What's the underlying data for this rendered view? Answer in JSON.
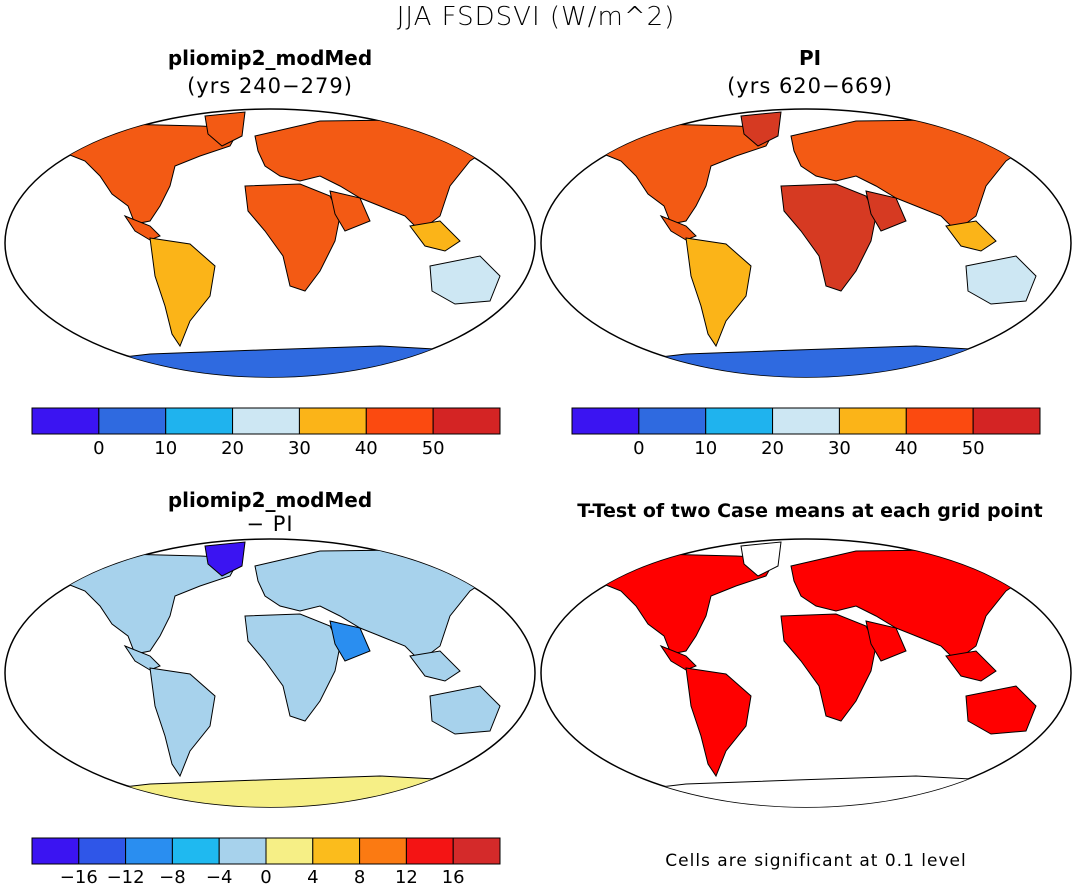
{
  "main_title": "JJA FSDSVI (W/m^2)",
  "panels": [
    {
      "title": "pliomip2_modMed",
      "subtitle": "(yrs 240−279)"
    },
    {
      "title": "PI",
      "subtitle": "(yrs 620−669)"
    },
    {
      "title": "pliomip2_modMed",
      "subtitle": "− PI"
    },
    {
      "title": "T-Test of two Case means at each grid point",
      "subtitle": ""
    }
  ],
  "colorbar_abs": {
    "colors": [
      "#3b14f2",
      "#2f6ae0",
      "#1fb3ee",
      "#cde7f3",
      "#fbb418",
      "#fb4a10",
      "#d42424"
    ],
    "labels": [
      "0",
      "10",
      "20",
      "30",
      "40",
      "50"
    ]
  },
  "colorbar_diff": {
    "colors": [
      "#3b14f2",
      "#2f56e8",
      "#2a8ef0",
      "#1fb9f0",
      "#a7d2ec",
      "#f6ef86",
      "#fbbc1c",
      "#fb7a12",
      "#f41414",
      "#d42a2a"
    ],
    "labels": [
      "−16",
      "−12",
      "−8",
      "−4",
      "0",
      "4",
      "8",
      "12",
      "16"
    ]
  },
  "significance_note": "Cells are significant at 0.1 level",
  "colors": {
    "land_orange": "#f35a14",
    "land_darkred": "#d63a22",
    "land_gold": "#fbb418",
    "land_lightblue": "#cde7f3",
    "ice_blue": "#2f6ae0",
    "diff_blue": "#a7d2ec",
    "diff_yellow": "#f6ef86",
    "diff_deep": "#3b14f2",
    "ttest_red": "#ff0000"
  }
}
